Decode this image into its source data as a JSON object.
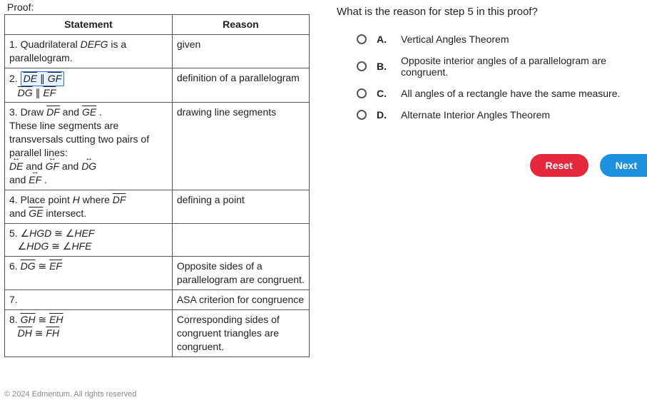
{
  "proof_label": "Proof:",
  "table": {
    "headers": {
      "statement": "Statement",
      "reason": "Reason"
    },
    "rows": [
      {
        "num": "1.",
        "statement_html": "Quadrilateral <span class='italic'>DEFG</span> is a parallelogram.",
        "reason": "given"
      },
      {
        "num": "2.",
        "statement_html": "<span class='highlight-box'><span class='overline'>DE</span> ∥ <span class='overline'>GF</span></span><br>&nbsp;&nbsp;&nbsp;<span class='overline'>DG</span> ∥ <span class='overline'>EF</span>",
        "reason": "definition of a parallelogram"
      },
      {
        "num": "3.",
        "statement_html": "Draw <span class='overline'>DF</span> and <span class='overline'>GE</span> .<br>These line segments are transversals cutting two pairs of parallel lines:<br><span class='lrarrow'>DE</span> and <span class='lrarrow'>GF</span> and <span class='lrarrow'>DG</span><br>and <span class='lrarrow'>EF</span> .",
        "reason": "drawing line segments"
      },
      {
        "num": "4.",
        "statement_html": "Place point <span class='italic'>H</span> where <span class='overline'>DF</span><br> and <span class='overline'>GE</span> intersect.",
        "reason": "defining a point"
      },
      {
        "num": "5.",
        "statement_html": "∠<span class='italic'>HGD</span> <span class='cong'>≅</span> ∠<span class='italic'>HEF</span><br>&nbsp;&nbsp;&nbsp;∠<span class='italic'>HDG</span> <span class='cong'>≅</span> ∠<span class='italic'>HFE</span>",
        "reason": ""
      },
      {
        "num": "6.",
        "statement_html": "<span class='overline'>DG</span> <span class='cong'>≅</span> <span class='overline'>EF</span>",
        "reason": "Opposite sides of a parallelogram are congruent."
      },
      {
        "num": "7.",
        "statement_html": "",
        "reason": "ASA criterion for congruence"
      },
      {
        "num": "8.",
        "statement_html": "<span class='overline'>GH</span> <span class='cong'>≅</span> <span class='overline'>EH</span><br>&nbsp;&nbsp;&nbsp;<span class='overline'>DH</span> <span class='cong'>≅</span> <span class='overline'>FH</span>",
        "reason": "Corresponding sides of congruent triangles are congruent."
      }
    ]
  },
  "question": "What is the reason for step 5 in this proof?",
  "options": [
    {
      "letter": "A.",
      "text": "Vertical Angles Theorem"
    },
    {
      "letter": "B.",
      "text": "Opposite interior angles of a parallelogram are congruent."
    },
    {
      "letter": "C.",
      "text": "All angles of a rectangle have the same measure."
    },
    {
      "letter": "D.",
      "text": "Alternate Interior Angles Theorem"
    }
  ],
  "buttons": {
    "reset": "Reset",
    "next": "Next"
  },
  "footer": "© 2024 Edmentum. All rights reserved"
}
